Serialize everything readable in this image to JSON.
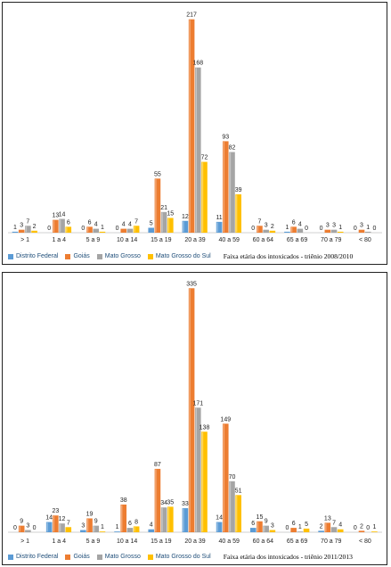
{
  "colors": {
    "Distrito Federal": "#5b9bd5",
    "Goiás": "#ed7d31",
    "Mato Grosso": "#a5a5a5",
    "Mato Grosso do Sul": "#ffc000"
  },
  "chart_data": [
    {
      "type": "bar",
      "title": "Faixa etária dos intoxicados - triênio 2008/2010",
      "categories": [
        "> 1",
        "1 a 4",
        "5 a 9",
        "10 a 14",
        "15 a 19",
        "20 a 39",
        "40 a 59",
        "60 a 64",
        "65 a 69",
        "70 a 79",
        "< 80"
      ],
      "series": [
        {
          "name": "Distrito Federal",
          "values": [
            1,
            0,
            0,
            0,
            5,
            12,
            11,
            0,
            1,
            0,
            0
          ]
        },
        {
          "name": "Goiás",
          "values": [
            3,
            13,
            6,
            4,
            55,
            217,
            93,
            7,
            6,
            3,
            3
          ]
        },
        {
          "name": "Mato Grosso",
          "values": [
            7,
            14,
            4,
            4,
            21,
            168,
            82,
            3,
            4,
            3,
            1
          ]
        },
        {
          "name": "Mato Grosso do Sul",
          "values": [
            2,
            6,
            1,
            7,
            15,
            72,
            39,
            2,
            0,
            1,
            0
          ]
        }
      ],
      "ylim": [
        0,
        225
      ],
      "grid": false,
      "legend": "bottom-left"
    },
    {
      "type": "bar",
      "title": "Faixa etária dos intoxicados - triênio 2011/2013",
      "categories": [
        "> 1",
        "1 a 4",
        "5 a 9",
        "10 a 14",
        "15 a 19",
        "20 a 39",
        "40 a 59",
        "60 a 64",
        "65 a 69",
        "70 a 79",
        "< 80"
      ],
      "series": [
        {
          "name": "Distrito Federal",
          "values": [
            0,
            14,
            3,
            1,
            4,
            33,
            14,
            6,
            0,
            2,
            0
          ]
        },
        {
          "name": "Goiás",
          "values": [
            9,
            23,
            19,
            38,
            87,
            335,
            149,
            15,
            6,
            13,
            2
          ]
        },
        {
          "name": "Mato Grosso",
          "values": [
            3,
            12,
            9,
            6,
            34,
            171,
            70,
            9,
            1,
            7,
            0
          ]
        },
        {
          "name": "Mato Grosso do Sul",
          "values": [
            0,
            7,
            1,
            8,
            35,
            138,
            51,
            3,
            5,
            4,
            1
          ]
        }
      ],
      "ylim": [
        0,
        340
      ],
      "grid": false,
      "legend": "bottom-left"
    }
  ]
}
